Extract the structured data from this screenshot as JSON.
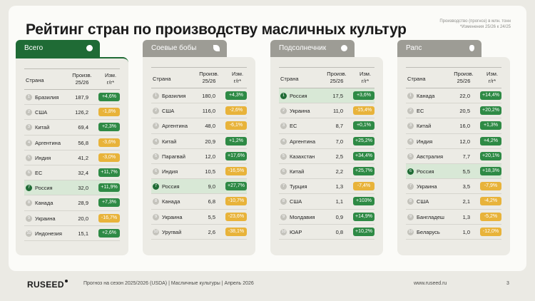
{
  "title": "Рейтинг стран по производству масличных культур",
  "note": {
    "line1": "Производство (прогноз) в млн. тонн",
    "line2": "*Изменения 25/26 к 24/25"
  },
  "columns": {
    "country": "Страна",
    "prod_line1": "Произв.",
    "prod_line2": "25/26",
    "change_line1": "Изм.",
    "change_line2": "г/г*"
  },
  "panels": [
    {
      "name": "Всего",
      "icon": "circle-icon",
      "active": true,
      "rows": [
        {
          "rank": "1",
          "country": "Бразилия",
          "value": "187,9",
          "change": "+4,6%",
          "dir": "pos"
        },
        {
          "rank": "2",
          "country": "США",
          "value": "126,2",
          "change": "-1,8%",
          "dir": "neg"
        },
        {
          "rank": "3",
          "country": "Китай",
          "value": "69,4",
          "change": "+2,3%",
          "dir": "pos"
        },
        {
          "rank": "4",
          "country": "Аргентина",
          "value": "56,8",
          "change": "-3,6%",
          "dir": "neg"
        },
        {
          "rank": "5",
          "country": "Индия",
          "value": "41,2",
          "change": "-3,0%",
          "dir": "neg"
        },
        {
          "rank": "6",
          "country": "ЕС",
          "value": "32,4",
          "change": "+11,7%",
          "dir": "pos"
        },
        {
          "rank": "7",
          "country": "Россия",
          "value": "32,0",
          "change": "+11,9%",
          "dir": "pos",
          "highlight": true
        },
        {
          "rank": "8",
          "country": "Канада",
          "value": "28,9",
          "change": "+7,3%",
          "dir": "pos"
        },
        {
          "rank": "9",
          "country": "Украина",
          "value": "20,0",
          "change": "-16,7%",
          "dir": "neg"
        },
        {
          "rank": "10",
          "country": "Индонезия",
          "value": "15,1",
          "change": "+2,6%",
          "dir": "pos"
        }
      ]
    },
    {
      "name": "Соевые бобы",
      "icon": "soybean-icon",
      "active": false,
      "rows": [
        {
          "rank": "1",
          "country": "Бразилия",
          "value": "180,0",
          "change": "+4,3%",
          "dir": "pos"
        },
        {
          "rank": "2",
          "country": "США",
          "value": "116,0",
          "change": "-2,6%",
          "dir": "neg"
        },
        {
          "rank": "3",
          "country": "Аргентина",
          "value": "48,0",
          "change": "-6,1%",
          "dir": "neg"
        },
        {
          "rank": "4",
          "country": "Китай",
          "value": "20,9",
          "change": "+1,2%",
          "dir": "pos"
        },
        {
          "rank": "5",
          "country": "Парагвай",
          "value": "12,0",
          "change": "+17,6%",
          "dir": "pos"
        },
        {
          "rank": "6",
          "country": "Индия",
          "value": "10,5",
          "change": "-16,5%",
          "dir": "neg"
        },
        {
          "rank": "7",
          "country": "Россия",
          "value": "9,0",
          "change": "+27,7%",
          "dir": "pos",
          "highlight": true
        },
        {
          "rank": "8",
          "country": "Канада",
          "value": "6,8",
          "change": "-10,7%",
          "dir": "neg"
        },
        {
          "rank": "9",
          "country": "Украина",
          "value": "5,5",
          "change": "-23,6%",
          "dir": "neg"
        },
        {
          "rank": "10",
          "country": "Уругвай",
          "value": "2,6",
          "change": "-38,1%",
          "dir": "neg"
        }
      ]
    },
    {
      "name": "Подсолнечник",
      "icon": "sunflower-icon",
      "active": false,
      "rows": [
        {
          "rank": "1",
          "country": "Россия",
          "value": "17,5",
          "change": "+3,6%",
          "dir": "pos",
          "highlight": true
        },
        {
          "rank": "2",
          "country": "Украина",
          "value": "11,0",
          "change": "-15,4%",
          "dir": "neg"
        },
        {
          "rank": "3",
          "country": "ЕС",
          "value": "8,7",
          "change": "+0,1%",
          "dir": "pos"
        },
        {
          "rank": "4",
          "country": "Аргентина",
          "value": "7,0",
          "change": "+25,2%",
          "dir": "pos"
        },
        {
          "rank": "5",
          "country": "Казахстан",
          "value": "2,5",
          "change": "+34,4%",
          "dir": "pos"
        },
        {
          "rank": "6",
          "country": "Китай",
          "value": "2,2",
          "change": "+25,7%",
          "dir": "pos"
        },
        {
          "rank": "7",
          "country": "Турция",
          "value": "1,3",
          "change": "-7,4%",
          "dir": "neg"
        },
        {
          "rank": "8",
          "country": "США",
          "value": "1,1",
          "change": "+103%",
          "dir": "pos"
        },
        {
          "rank": "9",
          "country": "Молдавия",
          "value": "0,9",
          "change": "+14,9%",
          "dir": "pos"
        },
        {
          "rank": "10",
          "country": "ЮАР",
          "value": "0,8",
          "change": "+10,2%",
          "dir": "pos"
        }
      ]
    },
    {
      "name": "Рапс",
      "icon": "rapeseed-icon",
      "active": false,
      "rows": [
        {
          "rank": "1",
          "country": "Канада",
          "value": "22,0",
          "change": "+14,4%",
          "dir": "pos"
        },
        {
          "rank": "2",
          "country": "ЕС",
          "value": "20,5",
          "change": "+20,2%",
          "dir": "pos"
        },
        {
          "rank": "3",
          "country": "Китай",
          "value": "16,0",
          "change": "+1,3%",
          "dir": "pos"
        },
        {
          "rank": "4",
          "country": "Индия",
          "value": "12,0",
          "change": "+4,2%",
          "dir": "pos"
        },
        {
          "rank": "5",
          "country": "Австралия",
          "value": "7,7",
          "change": "+20,1%",
          "dir": "pos"
        },
        {
          "rank": "6",
          "country": "Россия",
          "value": "5,5",
          "change": "+18,3%",
          "dir": "pos",
          "highlight": true
        },
        {
          "rank": "7",
          "country": "Украина",
          "value": "3,5",
          "change": "-7,9%",
          "dir": "neg"
        },
        {
          "rank": "8",
          "country": "США",
          "value": "2,1",
          "change": "-4,2%",
          "dir": "neg"
        },
        {
          "rank": "9",
          "country": "Бангладеш",
          "value": "1,3",
          "change": "-5,2%",
          "dir": "neg"
        },
        {
          "rank": "10",
          "country": "Беларусь",
          "value": "1,0",
          "change": "-12,0%",
          "dir": "neg"
        }
      ]
    }
  ],
  "footer": {
    "logo": "RUSEED",
    "text": "Прогноз на сезон 2025/2026 (USDA)  |  Масличные культуры  |  Апрель 2026",
    "url": "www.ruseed.ru",
    "page": "3"
  },
  "colors": {
    "accent": "#1f6b35",
    "positive": "#2e8a45",
    "negative": "#e8b33a",
    "tab_inactive": "#9d9c95",
    "highlight_row": "#d8e8d6"
  }
}
